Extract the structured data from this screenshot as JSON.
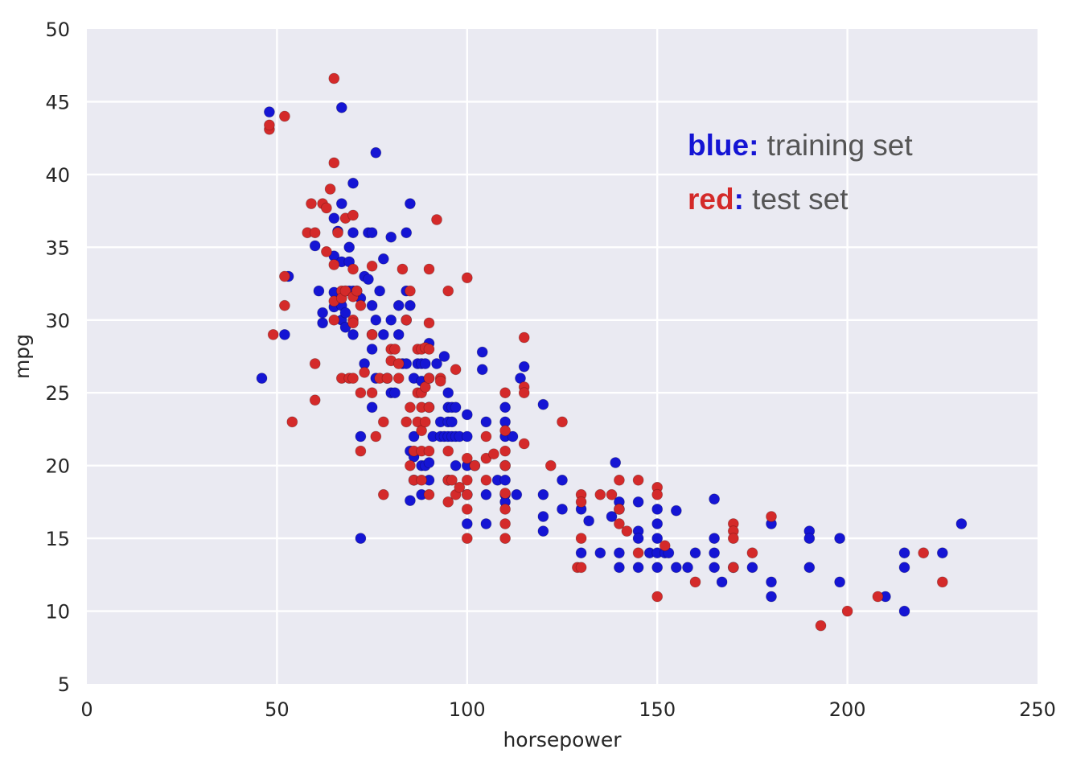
{
  "chart_data": {
    "type": "scatter",
    "xlabel": "horsepower",
    "ylabel": "mpg",
    "xlim": [
      0,
      250
    ],
    "ylim": [
      5,
      50
    ],
    "xticks": [
      "0",
      "50",
      "100",
      "150",
      "200",
      "250"
    ],
    "yticks": [
      "5",
      "10",
      "15",
      "20",
      "25",
      "30",
      "35",
      "40",
      "45",
      "50"
    ],
    "grid": true,
    "legend_placement": "top-right",
    "legend": [
      {
        "key": "blue",
        "separator": ":",
        "text": " training set",
        "color": "#1515d4"
      },
      {
        "key": "red",
        "separator": ":",
        "text": " test set",
        "color": "#d42a2a"
      }
    ],
    "colors": {
      "background": "#eaeaf2",
      "grid": "#ffffff",
      "blue": "#1515d4",
      "red": "#d42a2a",
      "legend_text": "#555555"
    },
    "series": [
      {
        "name": "training set",
        "color": "#1515d4",
        "points": [
          [
            46,
            26
          ],
          [
            48,
            44.3
          ],
          [
            52,
            29
          ],
          [
            53,
            33
          ],
          [
            60,
            35.1
          ],
          [
            61,
            32
          ],
          [
            62,
            29.8
          ],
          [
            62,
            30.5
          ],
          [
            65,
            37
          ],
          [
            65,
            34.4
          ],
          [
            65,
            31.9
          ],
          [
            65,
            30.9
          ],
          [
            66,
            36.1
          ],
          [
            67,
            38
          ],
          [
            67,
            44.6
          ],
          [
            67,
            34
          ],
          [
            67,
            31
          ],
          [
            67,
            30
          ],
          [
            68,
            32
          ],
          [
            68,
            30.5
          ],
          [
            68,
            29.5
          ],
          [
            69,
            32
          ],
          [
            69,
            35
          ],
          [
            69,
            34
          ],
          [
            70,
            36
          ],
          [
            70,
            32
          ],
          [
            70,
            39.4
          ],
          [
            70,
            29
          ],
          [
            71,
            32
          ],
          [
            72,
            31.5
          ],
          [
            72,
            22
          ],
          [
            72,
            15
          ],
          [
            73,
            33
          ],
          [
            73,
            27
          ],
          [
            74,
            36
          ],
          [
            74,
            32.8
          ],
          [
            75,
            36
          ],
          [
            75,
            29
          ],
          [
            75,
            31
          ],
          [
            75,
            28
          ],
          [
            75,
            24
          ],
          [
            76,
            41.5
          ],
          [
            76,
            30
          ],
          [
            76,
            26
          ],
          [
            77,
            32
          ],
          [
            78,
            34.2
          ],
          [
            78,
            29
          ],
          [
            79,
            26
          ],
          [
            80,
            35.7
          ],
          [
            80,
            30
          ],
          [
            80,
            25
          ],
          [
            81,
            25
          ],
          [
            82,
            31
          ],
          [
            82,
            29
          ],
          [
            83,
            27
          ],
          [
            84,
            36
          ],
          [
            84,
            30
          ],
          [
            84,
            32
          ],
          [
            84,
            27
          ],
          [
            85,
            38
          ],
          [
            85,
            31
          ],
          [
            85,
            21
          ],
          [
            85,
            17.6
          ],
          [
            86,
            22
          ],
          [
            86,
            20.6
          ],
          [
            86,
            19
          ],
          [
            86,
            26
          ],
          [
            87,
            27
          ],
          [
            88,
            20
          ],
          [
            88,
            18
          ],
          [
            88,
            27
          ],
          [
            88,
            25.8
          ],
          [
            89,
            27
          ],
          [
            89,
            20
          ],
          [
            90,
            28.4
          ],
          [
            90,
            26
          ],
          [
            90,
            24
          ],
          [
            90,
            20.2
          ],
          [
            90,
            19
          ],
          [
            91,
            22
          ],
          [
            92,
            27
          ],
          [
            93,
            23
          ],
          [
            93,
            22
          ],
          [
            94,
            22
          ],
          [
            94,
            27.5
          ],
          [
            95,
            24
          ],
          [
            95,
            23
          ],
          [
            95,
            25
          ],
          [
            95,
            22
          ],
          [
            95,
            19
          ],
          [
            96,
            24
          ],
          [
            96,
            23
          ],
          [
            96,
            22
          ],
          [
            97,
            24
          ],
          [
            97,
            22
          ],
          [
            97,
            20
          ],
          [
            98,
            22
          ],
          [
            100,
            22
          ],
          [
            100,
            23.5
          ],
          [
            100,
            20
          ],
          [
            100,
            18
          ],
          [
            100,
            16
          ],
          [
            102,
            20
          ],
          [
            104,
            27.8
          ],
          [
            104,
            26.6
          ],
          [
            105,
            23
          ],
          [
            105,
            18
          ],
          [
            105,
            16
          ],
          [
            108,
            19
          ],
          [
            110,
            24
          ],
          [
            110,
            23
          ],
          [
            110,
            22
          ],
          [
            110,
            20
          ],
          [
            110,
            19
          ],
          [
            110,
            18
          ],
          [
            110,
            17.5
          ],
          [
            112,
            22
          ],
          [
            113,
            18
          ],
          [
            114,
            26
          ],
          [
            115,
            26.8
          ],
          [
            120,
            24.2
          ],
          [
            120,
            18
          ],
          [
            120,
            16.5
          ],
          [
            120,
            15.5
          ],
          [
            125,
            19
          ],
          [
            125,
            17
          ],
          [
            130,
            17
          ],
          [
            130,
            14
          ],
          [
            132,
            16.2
          ],
          [
            135,
            14
          ],
          [
            138,
            16.5
          ],
          [
            139,
            20.2
          ],
          [
            140,
            17.5
          ],
          [
            140,
            17
          ],
          [
            140,
            14
          ],
          [
            140,
            13
          ],
          [
            145,
            17.5
          ],
          [
            145,
            15.5
          ],
          [
            145,
            15
          ],
          [
            145,
            13
          ],
          [
            148,
            14
          ],
          [
            150,
            17
          ],
          [
            150,
            16
          ],
          [
            150,
            15
          ],
          [
            150,
            14
          ],
          [
            150,
            13
          ],
          [
            152,
            14
          ],
          [
            153,
            14
          ],
          [
            155,
            16.9
          ],
          [
            155,
            13
          ],
          [
            158,
            13
          ],
          [
            160,
            14
          ],
          [
            165,
            17.7
          ],
          [
            165,
            15
          ],
          [
            165,
            14
          ],
          [
            165,
            13
          ],
          [
            167,
            12
          ],
          [
            170,
            13
          ],
          [
            175,
            13
          ],
          [
            180,
            16
          ],
          [
            180,
            12
          ],
          [
            180,
            11
          ],
          [
            190,
            15.5
          ],
          [
            190,
            15
          ],
          [
            190,
            13
          ],
          [
            198,
            15
          ],
          [
            198,
            12
          ],
          [
            210,
            11
          ],
          [
            215,
            14
          ],
          [
            215,
            13
          ],
          [
            215,
            10
          ],
          [
            225,
            14
          ],
          [
            230,
            16
          ]
        ]
      },
      {
        "name": "test set",
        "color": "#d42a2a",
        "points": [
          [
            48,
            43.1
          ],
          [
            48,
            43.4
          ],
          [
            49,
            29
          ],
          [
            52,
            44
          ],
          [
            52,
            33
          ],
          [
            52,
            31
          ],
          [
            54,
            23
          ],
          [
            58,
            36
          ],
          [
            59,
            38
          ],
          [
            60,
            36
          ],
          [
            60,
            27
          ],
          [
            60,
            24.5
          ],
          [
            62,
            38
          ],
          [
            63,
            37.7
          ],
          [
            63,
            34.7
          ],
          [
            64,
            39
          ],
          [
            65,
            46.6
          ],
          [
            65,
            40.8
          ],
          [
            65,
            33.8
          ],
          [
            65,
            31.3
          ],
          [
            65,
            30
          ],
          [
            66,
            36
          ],
          [
            67,
            32
          ],
          [
            67,
            31.5
          ],
          [
            67,
            26
          ],
          [
            68,
            37
          ],
          [
            68,
            32
          ],
          [
            69,
            26
          ],
          [
            70,
            37.2
          ],
          [
            70,
            33.5
          ],
          [
            70,
            31.6
          ],
          [
            70,
            30
          ],
          [
            70,
            26
          ],
          [
            70,
            29.8
          ],
          [
            71,
            32
          ],
          [
            72,
            31
          ],
          [
            72,
            25
          ],
          [
            72,
            21
          ],
          [
            73,
            26.4
          ],
          [
            75,
            33.7
          ],
          [
            75,
            29
          ],
          [
            75,
            25
          ],
          [
            76,
            22
          ],
          [
            77,
            26
          ],
          [
            78,
            23
          ],
          [
            78,
            18
          ],
          [
            79,
            26
          ],
          [
            80,
            28
          ],
          [
            80,
            27.2
          ],
          [
            81,
            28
          ],
          [
            82,
            27
          ],
          [
            82,
            26
          ],
          [
            83,
            33.5
          ],
          [
            84,
            30
          ],
          [
            84,
            23
          ],
          [
            85,
            32
          ],
          [
            85,
            24
          ],
          [
            85,
            20
          ],
          [
            86,
            21
          ],
          [
            86,
            19
          ],
          [
            87,
            28
          ],
          [
            87,
            25
          ],
          [
            87,
            23
          ],
          [
            88,
            28
          ],
          [
            88,
            25
          ],
          [
            88,
            24
          ],
          [
            88,
            22.4
          ],
          [
            88,
            21
          ],
          [
            88,
            19
          ],
          [
            89,
            28.1
          ],
          [
            89,
            25.4
          ],
          [
            89,
            23
          ],
          [
            90,
            29.8
          ],
          [
            90,
            33.5
          ],
          [
            90,
            28
          ],
          [
            90,
            26
          ],
          [
            90,
            24
          ],
          [
            90,
            21
          ],
          [
            90,
            18
          ],
          [
            92,
            36.9
          ],
          [
            93,
            26
          ],
          [
            93,
            25.8
          ],
          [
            95,
            32
          ],
          [
            95,
            21
          ],
          [
            95,
            19
          ],
          [
            95,
            17.5
          ],
          [
            96,
            19
          ],
          [
            97,
            26.6
          ],
          [
            97,
            18
          ],
          [
            98,
            18.5
          ],
          [
            100,
            32.9
          ],
          [
            100,
            20.5
          ],
          [
            100,
            19
          ],
          [
            100,
            18
          ],
          [
            100,
            17
          ],
          [
            100,
            15
          ],
          [
            102,
            20
          ],
          [
            105,
            22
          ],
          [
            105,
            20.5
          ],
          [
            105,
            19
          ],
          [
            107,
            20.8
          ],
          [
            110,
            25
          ],
          [
            110,
            22.4
          ],
          [
            110,
            21
          ],
          [
            110,
            20
          ],
          [
            110,
            17
          ],
          [
            110,
            16
          ],
          [
            110,
            15
          ],
          [
            110,
            18.1
          ],
          [
            115,
            28.8
          ],
          [
            115,
            25.4
          ],
          [
            115,
            25
          ],
          [
            115,
            21.5
          ],
          [
            122,
            20
          ],
          [
            125,
            23
          ],
          [
            129,
            13
          ],
          [
            130,
            18
          ],
          [
            130,
            17.5
          ],
          [
            130,
            15
          ],
          [
            130,
            13
          ],
          [
            135,
            18
          ],
          [
            138,
            18
          ],
          [
            140,
            19
          ],
          [
            140,
            17
          ],
          [
            140,
            16
          ],
          [
            142,
            15.5
          ],
          [
            145,
            19
          ],
          [
            145,
            14
          ],
          [
            150,
            18.5
          ],
          [
            150,
            18
          ],
          [
            150,
            11
          ],
          [
            152,
            14.5
          ],
          [
            160,
            12
          ],
          [
            170,
            16
          ],
          [
            170,
            15.5
          ],
          [
            170,
            15
          ],
          [
            170,
            13
          ],
          [
            175,
            14
          ],
          [
            180,
            16.5
          ],
          [
            193,
            9
          ],
          [
            200,
            10
          ],
          [
            208,
            11
          ],
          [
            220,
            14
          ],
          [
            225,
            12
          ]
        ]
      }
    ]
  }
}
